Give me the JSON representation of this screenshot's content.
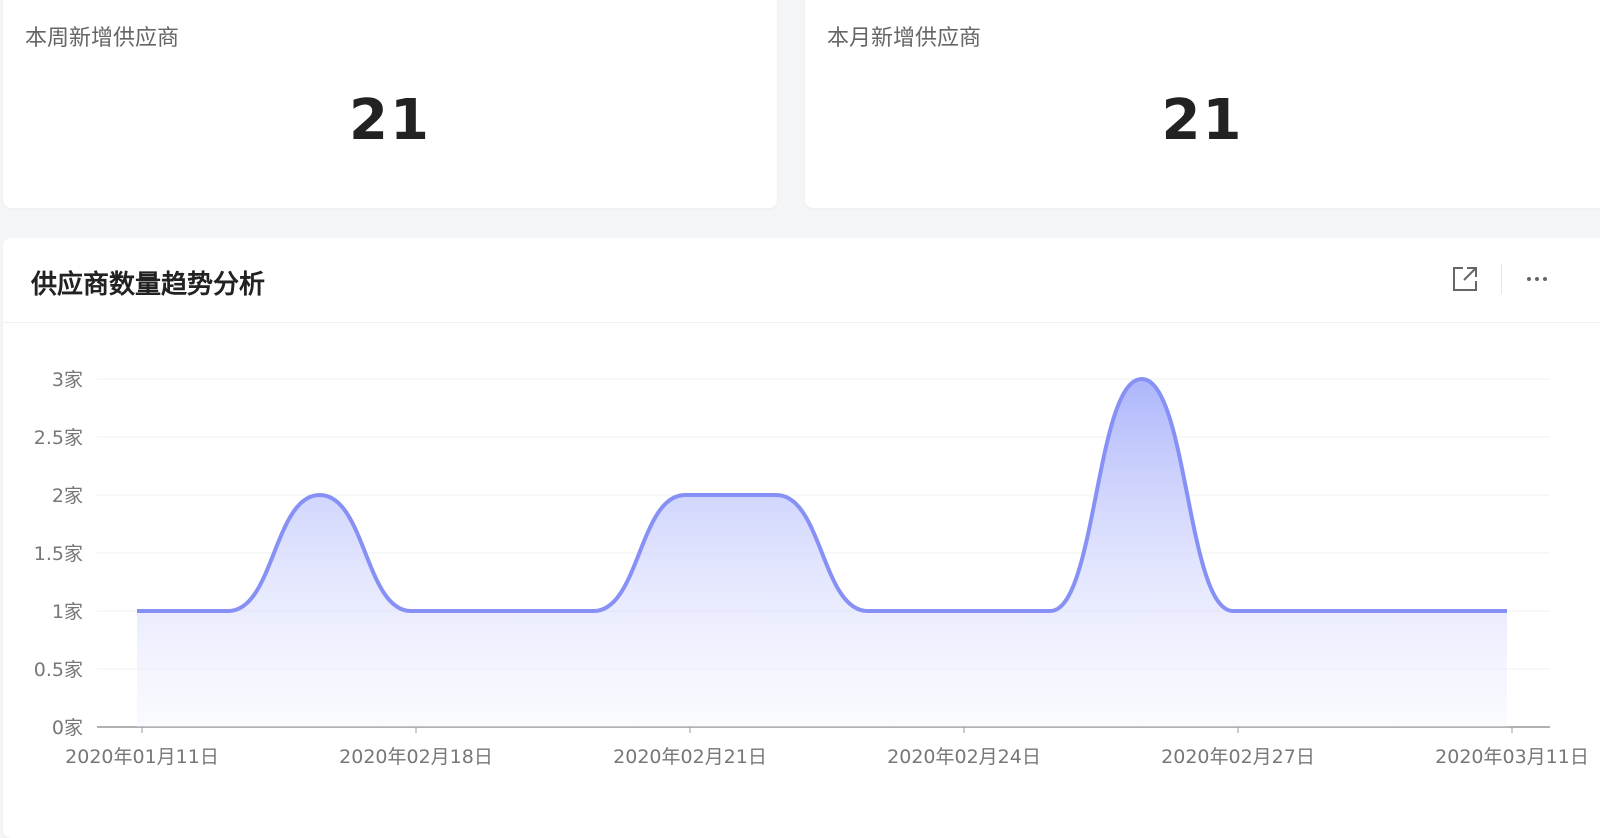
{
  "cards": [
    {
      "label": "本周新增供应商",
      "value": 21
    },
    {
      "label": "本月新增供应商",
      "value": 21
    }
  ],
  "chart_data": {
    "type": "area",
    "title": "供应商数量趋势分析",
    "categories": [
      "2020年01月11日",
      null,
      null,
      "2020年02月18日",
      null,
      null,
      "2020年02月21日",
      null,
      null,
      "2020年02月24日",
      null,
      null,
      "2020年02月27日",
      null,
      null,
      "2020年03月11日"
    ],
    "values": [
      1,
      1,
      2,
      1,
      1,
      1,
      2,
      2,
      1,
      1,
      1,
      3,
      1,
      1,
      1,
      1
    ],
    "color": "#8791f5",
    "ylim": [
      0,
      3
    ],
    "yticks": [
      {
        "value": 0,
        "label": "0家"
      },
      {
        "value": 0.5,
        "label": "0.5家"
      },
      {
        "value": 1,
        "label": "1家"
      },
      {
        "value": 1.5,
        "label": "1.5家"
      },
      {
        "value": 2,
        "label": "2家"
      },
      {
        "value": 2.5,
        "label": "2.5家"
      },
      {
        "value": 3,
        "label": "3家"
      }
    ],
    "grid": true
  }
}
